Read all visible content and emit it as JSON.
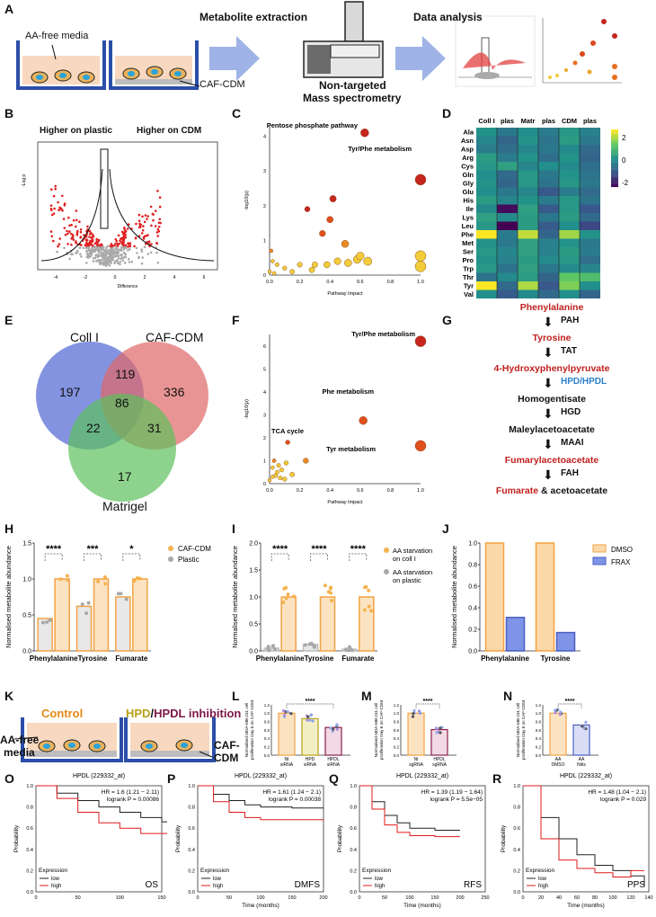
{
  "panels": {
    "A": "A",
    "B": "B",
    "C": "C",
    "D": "D",
    "E": "E",
    "F": "F",
    "G": "G",
    "H": "H",
    "I": "I",
    "J": "J",
    "K": "K",
    "L": "L",
    "M": "M",
    "N": "N",
    "O": "O",
    "P": "P",
    "Q": "Q",
    "R": "R"
  },
  "panel_a": {
    "media_label": "AA-free media",
    "cdm_label": "CAF-CDM",
    "step1": "Metabolite extraction",
    "step2a": "Non-targeted",
    "step2b": "Mass spectrometry",
    "step3": "Data analysis"
  },
  "panel_b": {
    "left_header": "Higher on plastic",
    "right_header": "Higher on CDM",
    "xlabel": "Difference",
    "ylabel": "-Log p",
    "xticks": [
      "-4",
      "-2",
      "0",
      "2",
      "4",
      "6"
    ]
  },
  "panel_c": {
    "xlabel": "Pathway Impact",
    "ylabel": "-log10(p)",
    "xticks": [
      "0.0",
      "0.2",
      "0.4",
      "0.6",
      "0.8",
      "1.0"
    ],
    "yticks": [
      "0",
      "1",
      "2",
      "3",
      "4"
    ],
    "ann1": "Pentose phosphate pathway",
    "ann2": "Tyr/Phe metabolism"
  },
  "panel_d": {
    "columns": [
      "Coll I",
      "plas",
      "Matr",
      "plas",
      "CDM",
      "plas"
    ],
    "rows": [
      "Ala",
      "Asn",
      "Asp",
      "Arg",
      "Cys",
      "Gln",
      "Gly",
      "Glu",
      "His",
      "Ile",
      "Lys",
      "Leu",
      "Phe",
      "Met",
      "Ser",
      "Pro",
      "Trp",
      "Thr",
      "Tyr",
      "Val"
    ],
    "scale_ticks": [
      "2",
      "0",
      "-2"
    ]
  },
  "panel_e": {
    "coll": "Coll I",
    "cdm": "CAF-CDM",
    "matrigel": "Matrigel",
    "n_coll": "197",
    "n_cdm": "336",
    "n_mat": "17",
    "n_coll_cdm": "119",
    "n_coll_mat": "22",
    "n_cdm_mat": "31",
    "n_all": "86",
    "colors": {
      "coll": "#5b6fd6",
      "cdm": "#e06666",
      "mat": "#5cc15c"
    }
  },
  "panel_f": {
    "xlabel": "Pathway Impact",
    "ylabel": "-log10(p)",
    "xticks": [
      "0.0",
      "0.2",
      "0.4",
      "0.6",
      "0.8",
      "1.0"
    ],
    "yticks": [
      "0",
      "1",
      "2",
      "3",
      "4",
      "5",
      "6"
    ],
    "ann1": "Tyr/Phe metabolism",
    "ann2": "Phe metabolism",
    "ann3": "TCA cycle",
    "ann4": "Tyr metabolism"
  },
  "panel_g": {
    "steps": [
      "Phenylalanine",
      "PAH",
      "Tyrosine",
      "TAT",
      "4-Hydroxyphenylpyruvate",
      "HPD/HPDL",
      "Homogentisate",
      "HGD",
      "Maleylacetoacetate",
      "MAAI",
      "Fumarylacetoacetate",
      "FAH",
      "Fumarate"
    ],
    "tail": " & acetoacetate"
  },
  "panel_h": {
    "ylabel": "Normalised metabolite abundance",
    "categories": [
      "Phenylalanine",
      "Tyrosine",
      "Fumarate"
    ],
    "legend": [
      "CAF-CDM",
      "Plastic"
    ],
    "sig": [
      "****",
      "***",
      "*"
    ],
    "yticks": [
      "0.0",
      "0.5",
      "1.0",
      "1.5"
    ]
  },
  "panel_i": {
    "ylabel": "Normalised metabolite abundance",
    "categories": [
      "Phenylalanine",
      "Tyrosine",
      "Fumarate"
    ],
    "legend1": "AA starvation",
    "legend1b": "on coll I",
    "legend2": "AA starvation",
    "legend2b": "on plastic",
    "sig": [
      "****",
      "****",
      "****"
    ],
    "yticks": [
      "0.0",
      "0.5",
      "1.0",
      "1.5",
      "2.0"
    ]
  },
  "panel_j": {
    "ylabel": "Normalised metabolite abundance",
    "categories": [
      "Phenylalanine",
      "Tyrosine"
    ],
    "legend": [
      "DMSO",
      "FRAX"
    ],
    "yticks": [
      "0.0",
      "0.2",
      "0.4",
      "0.6",
      "0.8",
      "1.0"
    ]
  },
  "panel_k": {
    "control": "Control",
    "hpd": "HPD",
    "slash": "/",
    "hpdl": "HPDL inhibition",
    "media1": "AA-free",
    "media2": "media",
    "cdm1": "CAF-",
    "cdm2": "CDM"
  },
  "panel_l": {
    "ylabel1": "Normalised MDA-MB-231 cell",
    "ylabel2": "proliferation Day 6 on CAF-CDM",
    "cats": [
      [
        "Nt",
        "siRNA"
      ],
      [
        "HPD",
        "siRNA"
      ],
      [
        "HPDL",
        "siRNA"
      ]
    ],
    "sig": "****",
    "yticks": [
      "0.0",
      "0.2",
      "0.4",
      "0.6",
      "0.8",
      "1.0",
      "1.2"
    ]
  },
  "panel_m": {
    "ylabel1": "Normalised MDA-MB-231 cell",
    "ylabel2": "proliferation Day 6 on CAF-CDM",
    "cats": [
      [
        "Nt",
        "sgRNA"
      ],
      [
        "HPDL",
        "sgRNA"
      ]
    ],
    "sig": "****",
    "yticks": [
      "0.0",
      "0.2",
      "0.4",
      "0.6",
      "0.8",
      "1.0",
      "1.2"
    ]
  },
  "panel_n": {
    "ylabel1": "Normalised MDA-MB-231 cell",
    "ylabel2": "proliferation Day 6 on CAF-CDM",
    "cats": [
      [
        "AA",
        "DMSO"
      ],
      [
        "AA",
        "Nitis"
      ]
    ],
    "sig": "****",
    "yticks": [
      "0.0",
      "0.2",
      "0.4",
      "0.6",
      "0.8",
      "1.0",
      "1.2"
    ]
  },
  "km": [
    {
      "id": "O",
      "title": "HPDL (229332_at)",
      "hr": "HR = 1.6 (1.21 − 2.11)",
      "p": "logrank P = 0.00086",
      "tag": "OS",
      "xticks": [
        "0",
        "50",
        "100",
        "150"
      ],
      "xlabel": "",
      "ylabel": "Probability"
    },
    {
      "id": "P",
      "title": "HPDL (229332_at)",
      "hr": "HR = 1.61 (1.24 − 2.1)",
      "p": "logrank P = 0.00038",
      "tag": "DMFS",
      "xticks": [
        "0",
        "50",
        "100",
        "150",
        "200"
      ],
      "xlabel": "Time (months)",
      "ylabel": "Probability"
    },
    {
      "id": "Q",
      "title": "HPDL (229332_at)",
      "hr": "HR = 1.39 (1.19 − 1.64)",
      "p": "logrank P = 5.5e−05",
      "tag": "RFS",
      "xticks": [
        "0",
        "50",
        "100",
        "150",
        "200",
        "250"
      ],
      "xlabel": "Time (months)",
      "ylabel": "Probability"
    },
    {
      "id": "R",
      "title": "HPDL (229332_at)",
      "hr": "HR = 1.48 (1.04 − 2.1)",
      "p": "logrank P = 0.029",
      "tag": "PPS",
      "xticks": [
        "0",
        "20",
        "40",
        "60",
        "80",
        "100",
        "120",
        "140"
      ],
      "xlabel": "Time (months)",
      "ylabel": "Probability"
    }
  ],
  "km_common": {
    "expression": "Expression",
    "low": "low",
    "high": "high",
    "yticks": [
      "0.0",
      "0.2",
      "0.4",
      "0.6",
      "0.8",
      "1.0"
    ]
  },
  "chart_data": [
    {
      "type": "bar",
      "panel": "H",
      "categories": [
        "Phenylalanine",
        "Tyrosine",
        "Fumarate"
      ],
      "series": [
        {
          "name": "Plastic",
          "values": [
            0.45,
            0.62,
            0.75
          ]
        },
        {
          "name": "CAF-CDM",
          "values": [
            1.0,
            1.0,
            1.0
          ]
        }
      ],
      "ylabel": "Normalised metabolite abundance",
      "ylim": [
        0,
        1.5
      ]
    },
    {
      "type": "bar",
      "panel": "I",
      "categories": [
        "Phenylalanine",
        "Tyrosine",
        "Fumarate"
      ],
      "series": [
        {
          "name": "AA starvation on plastic",
          "values": [
            0.05,
            0.12,
            0.03
          ]
        },
        {
          "name": "AA starvation on coll I",
          "values": [
            1.0,
            1.0,
            1.0
          ]
        }
      ],
      "ylabel": "Normalised metabolite abundance",
      "ylim": [
        0,
        2.0
      ]
    },
    {
      "type": "bar",
      "panel": "J",
      "categories": [
        "Phenylalanine",
        "Tyrosine"
      ],
      "series": [
        {
          "name": "DMSO",
          "values": [
            1.0,
            1.0
          ]
        },
        {
          "name": "FRAX",
          "values": [
            0.31,
            0.17
          ]
        }
      ],
      "ylabel": "Normalised metabolite abundance",
      "ylim": [
        0,
        1.0
      ]
    },
    {
      "type": "bar",
      "panel": "L",
      "categories": [
        "Nt siRNA",
        "HPD siRNA",
        "HPDL siRNA"
      ],
      "values": [
        1.0,
        0.87,
        0.66
      ],
      "ylim": [
        0,
        1.2
      ]
    },
    {
      "type": "bar",
      "panel": "M",
      "categories": [
        "Nt sgRNA",
        "HPDL sgRNA"
      ],
      "values": [
        1.0,
        0.61
      ],
      "ylim": [
        0,
        1.2
      ]
    },
    {
      "type": "bar",
      "panel": "N",
      "categories": [
        "AA DMSO",
        "AA Nitis"
      ],
      "values": [
        1.0,
        0.72
      ],
      "ylim": [
        0,
        1.2
      ]
    },
    {
      "type": "scatter",
      "panel": "C",
      "x": [
        1.0,
        0.63,
        1.0,
        1.0,
        0.5,
        0.42,
        0.4,
        0.35,
        0.25,
        0.58,
        0.6,
        0.45,
        0.3,
        0.2,
        0.1,
        0.05,
        0.02,
        0.0,
        0.15,
        0.28,
        0.38,
        0.52,
        0.65,
        0.01,
        0.03
      ],
      "y": [
        2.75,
        4.1,
        0.55,
        0.25,
        0.9,
        2.2,
        1.6,
        1.2,
        1.9,
        0.45,
        0.55,
        0.4,
        0.3,
        0.3,
        0.2,
        0.3,
        0.4,
        0.1,
        0.1,
        0.15,
        0.3,
        0.35,
        0.4,
        0.7,
        0.05
      ],
      "xlim": [
        0,
        1
      ],
      "ylim": [
        0,
        4.3
      ]
    },
    {
      "type": "scatter",
      "panel": "F",
      "x": [
        1.0,
        1.0,
        0.62,
        0.12,
        0.24,
        0.02,
        0.05,
        0.08,
        0.1,
        0.03,
        0.06,
        0.0,
        0.04,
        0.11,
        0.15,
        0.02,
        0.07
      ],
      "y": [
        6.2,
        1.65,
        2.75,
        1.8,
        1.0,
        0.3,
        0.5,
        0.6,
        0.2,
        1.0,
        0.8,
        0.15,
        0.35,
        0.9,
        0.4,
        0.7,
        0.25
      ],
      "xlim": [
        0,
        1
      ],
      "ylim": [
        0,
        6.5
      ]
    },
    {
      "type": "heatmap",
      "panel": "D",
      "columns": [
        "Coll I",
        "plas",
        "Matr",
        "plas",
        "CDM",
        "plas"
      ],
      "rows": [
        "Ala",
        "Asn",
        "Asp",
        "Arg",
        "Cys",
        "Gln",
        "Gly",
        "Glu",
        "His",
        "Ile",
        "Lys",
        "Leu",
        "Phe",
        "Met",
        "Ser",
        "Pro",
        "Trp",
        "Thr",
        "Tyr",
        "Val"
      ],
      "values": [
        [
          0.3,
          -0.3,
          0.2,
          -0.2,
          0.4,
          -0.1
        ],
        [
          0.0,
          -0.7,
          0.3,
          -0.4,
          0.5,
          -0.3
        ],
        [
          -0.2,
          -0.5,
          0.0,
          -0.3,
          0.1,
          -0.6
        ],
        [
          0.5,
          -0.2,
          0.3,
          -0.5,
          0.3,
          -0.7
        ],
        [
          0.4,
          0.6,
          0.0,
          0.2,
          0.1,
          -0.5
        ],
        [
          0.2,
          -0.6,
          0.4,
          -0.3,
          0.3,
          -0.4
        ],
        [
          0.3,
          -0.7,
          0.4,
          -0.4,
          0.4,
          -0.3
        ],
        [
          0.2,
          -0.3,
          0.0,
          -1.0,
          -0.2,
          -0.6
        ],
        [
          0.5,
          0.0,
          0.3,
          -0.2,
          0.4,
          -0.4
        ],
        [
          0.1,
          -2.3,
          0.6,
          -0.9,
          0.4,
          -1.0
        ],
        [
          0.6,
          0.1,
          0.5,
          -0.3,
          0.5,
          -0.6
        ],
        [
          0.4,
          -2.5,
          0.5,
          -0.9,
          0.2,
          -1.3
        ],
        [
          3.2,
          -0.2,
          2.5,
          -0.7,
          2.2,
          0.3
        ],
        [
          0.3,
          -0.3,
          0.6,
          -0.1,
          0.3,
          -0.3
        ],
        [
          0.4,
          0.0,
          0.6,
          -0.1,
          0.5,
          -0.2
        ],
        [
          0.3,
          -0.1,
          0.5,
          0.1,
          0.4,
          -0.5
        ],
        [
          0.4,
          -0.4,
          0.6,
          -0.3,
          0.1,
          0.0
        ],
        [
          -0.4,
          0.1,
          0.5,
          -0.7,
          1.6,
          1.3
        ],
        [
          3.1,
          -0.6,
          2.3,
          -1.0,
          1.9,
          0.2
        ],
        [
          0.2,
          -0.9,
          0.1,
          -0.6,
          0.2,
          -0.7
        ]
      ],
      "scale": [
        -2,
        2
      ]
    },
    {
      "type": "line",
      "panel": "O",
      "x": [
        0,
        25,
        50,
        75,
        100,
        125,
        150,
        170
      ],
      "series": [
        {
          "name": "low",
          "values": [
            1.0,
            0.93,
            0.86,
            0.8,
            0.75,
            0.7,
            0.66,
            0.45
          ]
        },
        {
          "name": "high",
          "values": [
            1.0,
            0.88,
            0.75,
            0.65,
            0.6,
            0.55,
            0.55,
            0.55
          ]
        }
      ]
    },
    {
      "type": "line",
      "panel": "P",
      "x": [
        0,
        25,
        50,
        75,
        100,
        150,
        200
      ],
      "series": [
        {
          "name": "low",
          "values": [
            1.0,
            0.92,
            0.86,
            0.82,
            0.8,
            0.79,
            0.79
          ]
        },
        {
          "name": "high",
          "values": [
            1.0,
            0.85,
            0.75,
            0.7,
            0.68,
            0.68,
            0.68
          ]
        }
      ]
    },
    {
      "type": "line",
      "panel": "Q",
      "x": [
        0,
        25,
        50,
        75,
        100,
        150,
        200
      ],
      "series": [
        {
          "name": "low",
          "values": [
            1.0,
            0.85,
            0.72,
            0.65,
            0.6,
            0.58,
            0.58
          ]
        },
        {
          "name": "high",
          "values": [
            1.0,
            0.78,
            0.63,
            0.56,
            0.53,
            0.52,
            0.52
          ]
        }
      ]
    },
    {
      "type": "line",
      "panel": "R",
      "x": [
        0,
        20,
        40,
        60,
        80,
        100,
        120,
        135
      ],
      "series": [
        {
          "name": "low",
          "values": [
            1.0,
            0.7,
            0.5,
            0.35,
            0.25,
            0.2,
            0.15,
            0.05
          ]
        },
        {
          "name": "high",
          "values": [
            1.0,
            0.5,
            0.3,
            0.22,
            0.18,
            0.14,
            0.2,
            0.2
          ]
        }
      ]
    }
  ]
}
